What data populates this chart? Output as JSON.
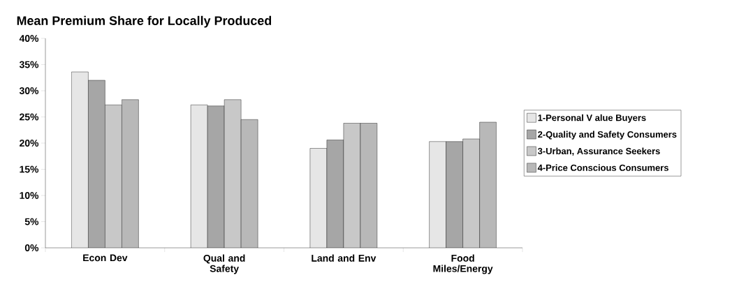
{
  "chart_data": {
    "type": "bar",
    "title": "Mean Premium Share for Locally Produced",
    "categories": [
      "Econ Dev",
      "Qual and Safety",
      "Land and Env",
      "Food Miles/Energy"
    ],
    "series": [
      {
        "name": "1-Personal V alue Buyers",
        "color": "#e6e6e6",
        "values": [
          33.6,
          27.3,
          19.0,
          20.3
        ]
      },
      {
        "name": "2-Quality and Safety Consumers",
        "color": "#a6a6a6",
        "values": [
          32.0,
          27.1,
          20.6,
          20.3
        ]
      },
      {
        "name": "3-Urban, Assurance Seekers",
        "color": "#c8c8c8",
        "values": [
          27.3,
          28.3,
          23.8,
          20.8
        ]
      },
      {
        "name": "4-Price Conscious Consumers",
        "color": "#b8b8b8",
        "values": [
          28.3,
          24.5,
          23.8,
          24.0
        ]
      }
    ],
    "ylim": [
      0,
      40
    ],
    "yticks": [
      {
        "value": 0,
        "label": "0%"
      },
      {
        "value": 5,
        "label": "5%"
      },
      {
        "value": 10,
        "label": "10%"
      },
      {
        "value": 15,
        "label": "15%"
      },
      {
        "value": 20,
        "label": "20%"
      },
      {
        "value": 25,
        "label": "25%"
      },
      {
        "value": 30,
        "label": "30%"
      },
      {
        "value": 35,
        "label": "35%"
      },
      {
        "value": 40,
        "label": "40%"
      }
    ],
    "legend": "right",
    "grid": false
  }
}
